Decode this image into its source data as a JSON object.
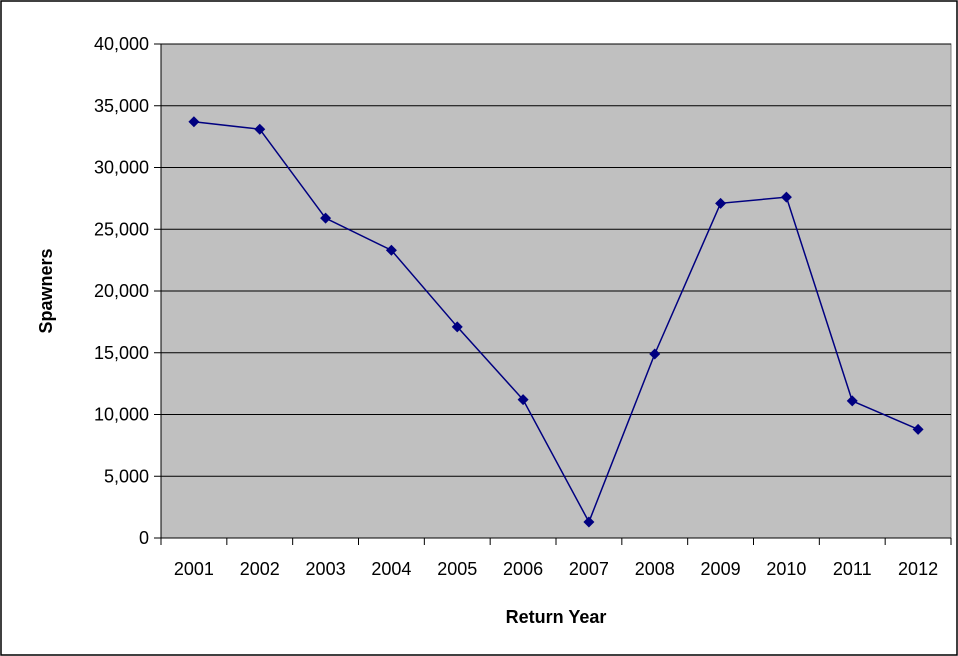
{
  "chart_data": {
    "type": "line",
    "title": "",
    "xlabel": "Return Year",
    "ylabel": "Spawners",
    "categories": [
      "2001",
      "2002",
      "2003",
      "2004",
      "2005",
      "2006",
      "2007",
      "2008",
      "2009",
      "2010",
      "2011",
      "2012"
    ],
    "series": [
      {
        "values": [
          33700,
          33100,
          25900,
          23300,
          17100,
          11200,
          1300,
          14900,
          27100,
          27600,
          11100,
          8800
        ]
      }
    ],
    "ylim": [
      0,
      40000
    ],
    "yticks": [
      0,
      5000,
      10000,
      15000,
      20000,
      25000,
      30000,
      35000,
      40000
    ],
    "ytick_labels": [
      "0",
      "5,000",
      "10,000",
      "15,000",
      "20,000",
      "25,000",
      "30,000",
      "35,000",
      "40,000"
    ],
    "grid": true,
    "legend": "none",
    "colors": {
      "plot_background": "#c0c0c0",
      "line": "#000080",
      "marker": "#000080",
      "gridline": "#000000",
      "frame": "#000000"
    },
    "marker": "diamond"
  }
}
